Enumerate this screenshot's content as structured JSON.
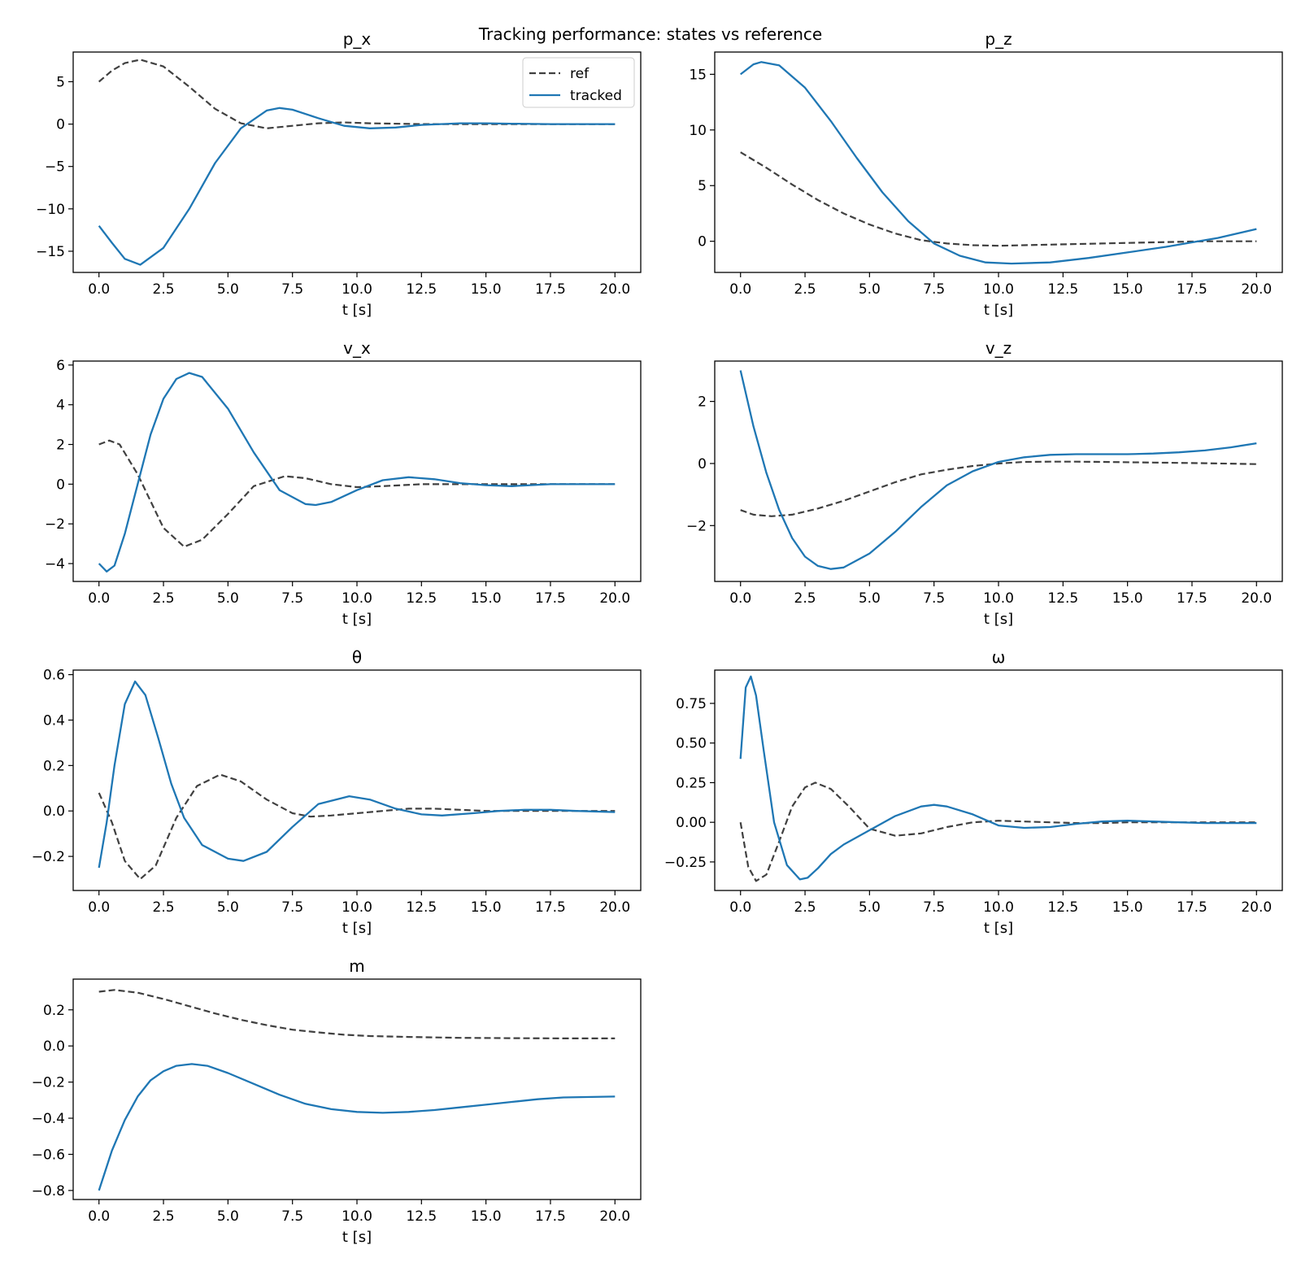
{
  "figure": {
    "title": "Tracking performance: states vs reference"
  },
  "legend": {
    "ref": "ref",
    "tracked": "tracked"
  },
  "colors": {
    "ref": "#404040",
    "tracked": "#1f77b4",
    "frame": "#000000"
  },
  "chart_data": [
    {
      "type": "line",
      "title": "p_x",
      "xlabel": "t [s]",
      "ylabel": "",
      "xlim": [
        -1,
        21
      ],
      "ylim": [
        -17.5,
        8.5
      ],
      "xticks": [
        0,
        2.5,
        5,
        7.5,
        10,
        12.5,
        15,
        17.5,
        20
      ],
      "xticklabels": [
        "0.0",
        "2.5",
        "5.0",
        "7.5",
        "10.0",
        "12.5",
        "15.0",
        "17.5",
        "20.0"
      ],
      "yticks": [
        5,
        0,
        -5,
        -10,
        -15
      ],
      "yticklabels": [
        "5",
        "0",
        "−5",
        "−10",
        "−15"
      ],
      "legend": "top-right",
      "series": [
        {
          "name": "ref",
          "style": "dashed",
          "x": [
            0,
            0.5,
            1,
            1.6,
            2.5,
            3.5,
            4.5,
            5.5,
            6.5,
            7.5,
            8.5,
            9.5,
            10.5,
            12.5,
            15,
            17.5,
            20
          ],
          "y": [
            5,
            6.3,
            7.2,
            7.6,
            6.8,
            4.4,
            1.8,
            0.1,
            -0.5,
            -0.2,
            0.1,
            0.2,
            0.1,
            0,
            0,
            0,
            0
          ]
        },
        {
          "name": "tracked",
          "style": "solid",
          "x": [
            0,
            0.5,
            1,
            1.6,
            2.5,
            3.5,
            4.5,
            5.5,
            6.5,
            7,
            7.5,
            8.5,
            9.5,
            10.5,
            11.5,
            12.5,
            14,
            15,
            16,
            17.5,
            20
          ],
          "y": [
            -12,
            -14,
            -15.9,
            -16.6,
            -14.6,
            -10,
            -4.6,
            -0.5,
            1.6,
            1.9,
            1.7,
            0.7,
            -0.2,
            -0.5,
            -0.4,
            -0.1,
            0.1,
            0.1,
            0.05,
            0,
            0
          ]
        }
      ]
    },
    {
      "type": "line",
      "title": "p_z",
      "xlabel": "t [s]",
      "ylabel": "",
      "xlim": [
        -1,
        21
      ],
      "ylim": [
        -2.8,
        17
      ],
      "xticks": [
        0,
        2.5,
        5,
        7.5,
        10,
        12.5,
        15,
        17.5,
        20
      ],
      "xticklabels": [
        "0.0",
        "2.5",
        "5.0",
        "7.5",
        "10.0",
        "12.5",
        "15.0",
        "17.5",
        "20.0"
      ],
      "yticks": [
        15,
        10,
        5,
        0
      ],
      "yticklabels": [
        "15",
        "10",
        "5",
        "0"
      ],
      "series": [
        {
          "name": "ref",
          "style": "dashed",
          "x": [
            0,
            1,
            2,
            3,
            4,
            5,
            6,
            7,
            8,
            9,
            10,
            11,
            12,
            14,
            16,
            18,
            20
          ],
          "y": [
            8,
            6.6,
            5.1,
            3.7,
            2.5,
            1.5,
            0.7,
            0.1,
            -0.2,
            -0.35,
            -0.4,
            -0.35,
            -0.3,
            -0.2,
            -0.1,
            0,
            0
          ]
        },
        {
          "name": "tracked",
          "style": "solid",
          "x": [
            0,
            0.5,
            0.8,
            1.5,
            2.5,
            3.5,
            4.5,
            5.5,
            6.5,
            7.5,
            8.5,
            9.5,
            10.5,
            12,
            13.5,
            15,
            16.5,
            17.5,
            18.5,
            20
          ],
          "y": [
            15,
            15.9,
            16.1,
            15.8,
            13.8,
            10.8,
            7.5,
            4.4,
            1.8,
            -0.2,
            -1.3,
            -1.9,
            -2,
            -1.9,
            -1.5,
            -1,
            -0.5,
            -0.1,
            0.3,
            1.1
          ]
        }
      ]
    },
    {
      "type": "line",
      "title": "v_x",
      "xlabel": "t [s]",
      "ylabel": "",
      "xlim": [
        -1,
        21
      ],
      "ylim": [
        -4.9,
        6.2
      ],
      "xticks": [
        0,
        2.5,
        5,
        7.5,
        10,
        12.5,
        15,
        17.5,
        20
      ],
      "xticklabels": [
        "0.0",
        "2.5",
        "5.0",
        "7.5",
        "10.0",
        "12.5",
        "15.0",
        "17.5",
        "20.0"
      ],
      "yticks": [
        6,
        4,
        2,
        0,
        -2,
        -4
      ],
      "yticklabels": [
        "6",
        "4",
        "2",
        "0",
        "−2",
        "−4"
      ],
      "series": [
        {
          "name": "ref",
          "style": "dashed",
          "x": [
            0,
            0.4,
            0.8,
            1.5,
            2.5,
            3.3,
            4,
            5,
            6,
            7.2,
            8,
            9,
            10,
            11,
            12.5,
            15,
            17.5,
            20
          ],
          "y": [
            2,
            2.2,
            2,
            0.5,
            -2.2,
            -3.15,
            -2.8,
            -1.5,
            -0.1,
            0.4,
            0.3,
            0,
            -0.15,
            -0.1,
            0,
            0,
            0,
            0
          ]
        },
        {
          "name": "tracked",
          "style": "solid",
          "x": [
            0,
            0.3,
            0.6,
            1,
            1.5,
            2,
            2.5,
            3,
            3.5,
            4,
            5,
            6,
            7,
            8,
            8.4,
            9,
            10,
            11,
            12,
            13,
            14,
            15,
            16,
            17.5,
            20
          ],
          "y": [
            -4,
            -4.4,
            -4.1,
            -2.5,
            0,
            2.5,
            4.3,
            5.3,
            5.6,
            5.4,
            3.8,
            1.6,
            -0.3,
            -1,
            -1.05,
            -0.9,
            -0.3,
            0.2,
            0.35,
            0.25,
            0.05,
            -0.05,
            -0.1,
            0,
            0
          ]
        }
      ]
    },
    {
      "type": "line",
      "title": "v_z",
      "xlabel": "t [s]",
      "ylabel": "",
      "xlim": [
        -1,
        21
      ],
      "ylim": [
        -3.8,
        3.3
      ],
      "xticks": [
        0,
        2.5,
        5,
        7.5,
        10,
        12.5,
        15,
        17.5,
        20
      ],
      "xticklabels": [
        "0.0",
        "2.5",
        "5.0",
        "7.5",
        "10.0",
        "12.5",
        "15.0",
        "17.5",
        "20.0"
      ],
      "yticks": [
        2,
        0,
        -2
      ],
      "yticklabels": [
        "2",
        "0",
        "−2"
      ],
      "series": [
        {
          "name": "ref",
          "style": "dashed",
          "x": [
            0,
            0.5,
            1.2,
            2,
            3,
            4,
            5,
            6,
            7,
            8,
            9,
            10,
            11,
            12,
            13,
            14,
            16,
            18,
            20
          ],
          "y": [
            -1.5,
            -1.65,
            -1.7,
            -1.65,
            -1.45,
            -1.2,
            -0.9,
            -0.6,
            -0.35,
            -0.2,
            -0.08,
            0,
            0.05,
            0.06,
            0.06,
            0.05,
            0.03,
            0.01,
            -0.02
          ]
        },
        {
          "name": "tracked",
          "style": "solid",
          "x": [
            0,
            0.5,
            1,
            1.5,
            2,
            2.5,
            3,
            3.5,
            4,
            5,
            6,
            7,
            8,
            9,
            10,
            11,
            12,
            13,
            14,
            15,
            16,
            17,
            18,
            19,
            20
          ],
          "y": [
            3,
            1.2,
            -0.3,
            -1.5,
            -2.4,
            -3,
            -3.3,
            -3.4,
            -3.35,
            -2.9,
            -2.2,
            -1.4,
            -0.7,
            -0.25,
            0.05,
            0.2,
            0.28,
            0.3,
            0.3,
            0.3,
            0.32,
            0.36,
            0.42,
            0.52,
            0.65
          ]
        }
      ]
    },
    {
      "type": "line",
      "title": "θ",
      "xlabel": "t [s]",
      "ylabel": "",
      "xlim": [
        -1,
        21
      ],
      "ylim": [
        -0.35,
        0.62
      ],
      "xticks": [
        0,
        2.5,
        5,
        7.5,
        10,
        12.5,
        15,
        17.5,
        20
      ],
      "xticklabels": [
        "0.0",
        "2.5",
        "5.0",
        "7.5",
        "10.0",
        "12.5",
        "15.0",
        "17.5",
        "20.0"
      ],
      "yticks": [
        0.6,
        0.4,
        0.2,
        0,
        -0.2
      ],
      "yticklabels": [
        "0.6",
        "0.4",
        "0.2",
        "0.0",
        "−0.2"
      ],
      "series": [
        {
          "name": "ref",
          "style": "dashed",
          "x": [
            0,
            0.5,
            1,
            1.6,
            2.2,
            3,
            3.8,
            4.7,
            5.5,
            6.5,
            7.5,
            8.2,
            9,
            10,
            11,
            12,
            13,
            14,
            15,
            16,
            17,
            18,
            19,
            20
          ],
          "y": [
            0.08,
            -0.05,
            -0.22,
            -0.3,
            -0.24,
            -0.03,
            0.11,
            0.16,
            0.13,
            0.05,
            -0.01,
            -0.025,
            -0.02,
            -0.01,
            0,
            0.01,
            0.01,
            0.005,
            0,
            0,
            0,
            0,
            0,
            0
          ]
        },
        {
          "name": "tracked",
          "style": "solid",
          "x": [
            0,
            0.3,
            0.6,
            1,
            1.4,
            1.8,
            2.3,
            2.8,
            3.3,
            4,
            5,
            5.6,
            6.5,
            7.5,
            8.5,
            9.7,
            10.5,
            11.5,
            12.5,
            13.3,
            14.5,
            15.5,
            16.5,
            17.5,
            18.5,
            20
          ],
          "y": [
            -0.25,
            -0.05,
            0.2,
            0.47,
            0.57,
            0.51,
            0.32,
            0.12,
            -0.03,
            -0.15,
            -0.21,
            -0.22,
            -0.18,
            -0.07,
            0.03,
            0.065,
            0.05,
            0.01,
            -0.015,
            -0.02,
            -0.01,
            0,
            0.005,
            0.005,
            0,
            -0.005
          ]
        }
      ]
    },
    {
      "type": "line",
      "title": "ω",
      "xlabel": "t [s]",
      "ylabel": "",
      "xlim": [
        -1,
        21
      ],
      "ylim": [
        -0.43,
        0.96
      ],
      "xticks": [
        0,
        2.5,
        5,
        7.5,
        10,
        12.5,
        15,
        17.5,
        20
      ],
      "xticklabels": [
        "0.0",
        "2.5",
        "5.0",
        "7.5",
        "10.0",
        "12.5",
        "15.0",
        "17.5",
        "20.0"
      ],
      "yticks": [
        0.75,
        0.5,
        0.25,
        0,
        -0.25
      ],
      "yticklabels": [
        "0.75",
        "0.50",
        "0.25",
        "0.00",
        "−0.25"
      ],
      "series": [
        {
          "name": "ref",
          "style": "dashed",
          "x": [
            0,
            0.3,
            0.6,
            1,
            1.5,
            2,
            2.5,
            2.9,
            3.5,
            4.2,
            5,
            6,
            7,
            8,
            9,
            10,
            11,
            12,
            13,
            14,
            15,
            16,
            18,
            20
          ],
          "y": [
            0,
            -0.28,
            -0.37,
            -0.33,
            -0.12,
            0.1,
            0.22,
            0.25,
            0.21,
            0.1,
            -0.04,
            -0.085,
            -0.07,
            -0.03,
            0,
            0.01,
            0.005,
            0,
            -0.005,
            -0.005,
            0,
            0,
            0,
            0
          ]
        },
        {
          "name": "tracked",
          "style": "solid",
          "x": [
            0,
            0.2,
            0.4,
            0.6,
            0.9,
            1.3,
            1.8,
            2.3,
            2.6,
            3,
            3.5,
            4,
            5,
            6,
            7,
            7.5,
            8,
            9,
            10,
            11,
            12,
            13,
            14,
            15,
            16,
            17,
            18,
            20
          ],
          "y": [
            0.4,
            0.85,
            0.92,
            0.8,
            0.45,
            0,
            -0.27,
            -0.36,
            -0.35,
            -0.29,
            -0.2,
            -0.14,
            -0.05,
            0.04,
            0.1,
            0.11,
            0.1,
            0.05,
            -0.02,
            -0.035,
            -0.03,
            -0.01,
            0.005,
            0.01,
            0.005,
            0,
            -0.005,
            -0.005
          ]
        }
      ]
    },
    {
      "type": "line",
      "title": "m",
      "xlabel": "t [s]",
      "ylabel": "",
      "xlim": [
        -1,
        21
      ],
      "ylim": [
        -0.85,
        0.37
      ],
      "xticks": [
        0,
        2.5,
        5,
        7.5,
        10,
        12.5,
        15,
        17.5,
        20
      ],
      "xticklabels": [
        "0.0",
        "2.5",
        "5.0",
        "7.5",
        "10.0",
        "12.5",
        "15.0",
        "17.5",
        "20.0"
      ],
      "yticks": [
        0.2,
        0,
        -0.2,
        -0.4,
        -0.6,
        -0.8
      ],
      "yticklabels": [
        "0.2",
        "0.0",
        "−0.2",
        "−0.4",
        "−0.6",
        "−0.8"
      ],
      "series": [
        {
          "name": "ref",
          "style": "dashed",
          "x": [
            0,
            0.6,
            1.5,
            2.5,
            3.5,
            4.5,
            5.5,
            6.5,
            7.5,
            8.5,
            9.5,
            10.5,
            12,
            14,
            16,
            18,
            20
          ],
          "y": [
            0.3,
            0.31,
            0.295,
            0.26,
            0.22,
            0.18,
            0.145,
            0.115,
            0.09,
            0.075,
            0.062,
            0.055,
            0.05,
            0.045,
            0.043,
            0.042,
            0.042
          ]
        },
        {
          "name": "tracked",
          "style": "solid",
          "x": [
            0,
            0.5,
            1,
            1.5,
            2,
            2.5,
            3,
            3.6,
            4.2,
            5,
            6,
            7,
            8,
            9,
            10,
            11,
            12,
            13,
            14,
            15,
            16,
            17,
            18,
            20
          ],
          "y": [
            -0.8,
            -0.58,
            -0.41,
            -0.28,
            -0.19,
            -0.14,
            -0.11,
            -0.1,
            -0.11,
            -0.15,
            -0.21,
            -0.27,
            -0.32,
            -0.35,
            -0.365,
            -0.37,
            -0.365,
            -0.355,
            -0.34,
            -0.325,
            -0.31,
            -0.295,
            -0.285,
            -0.28
          ]
        }
      ]
    }
  ]
}
